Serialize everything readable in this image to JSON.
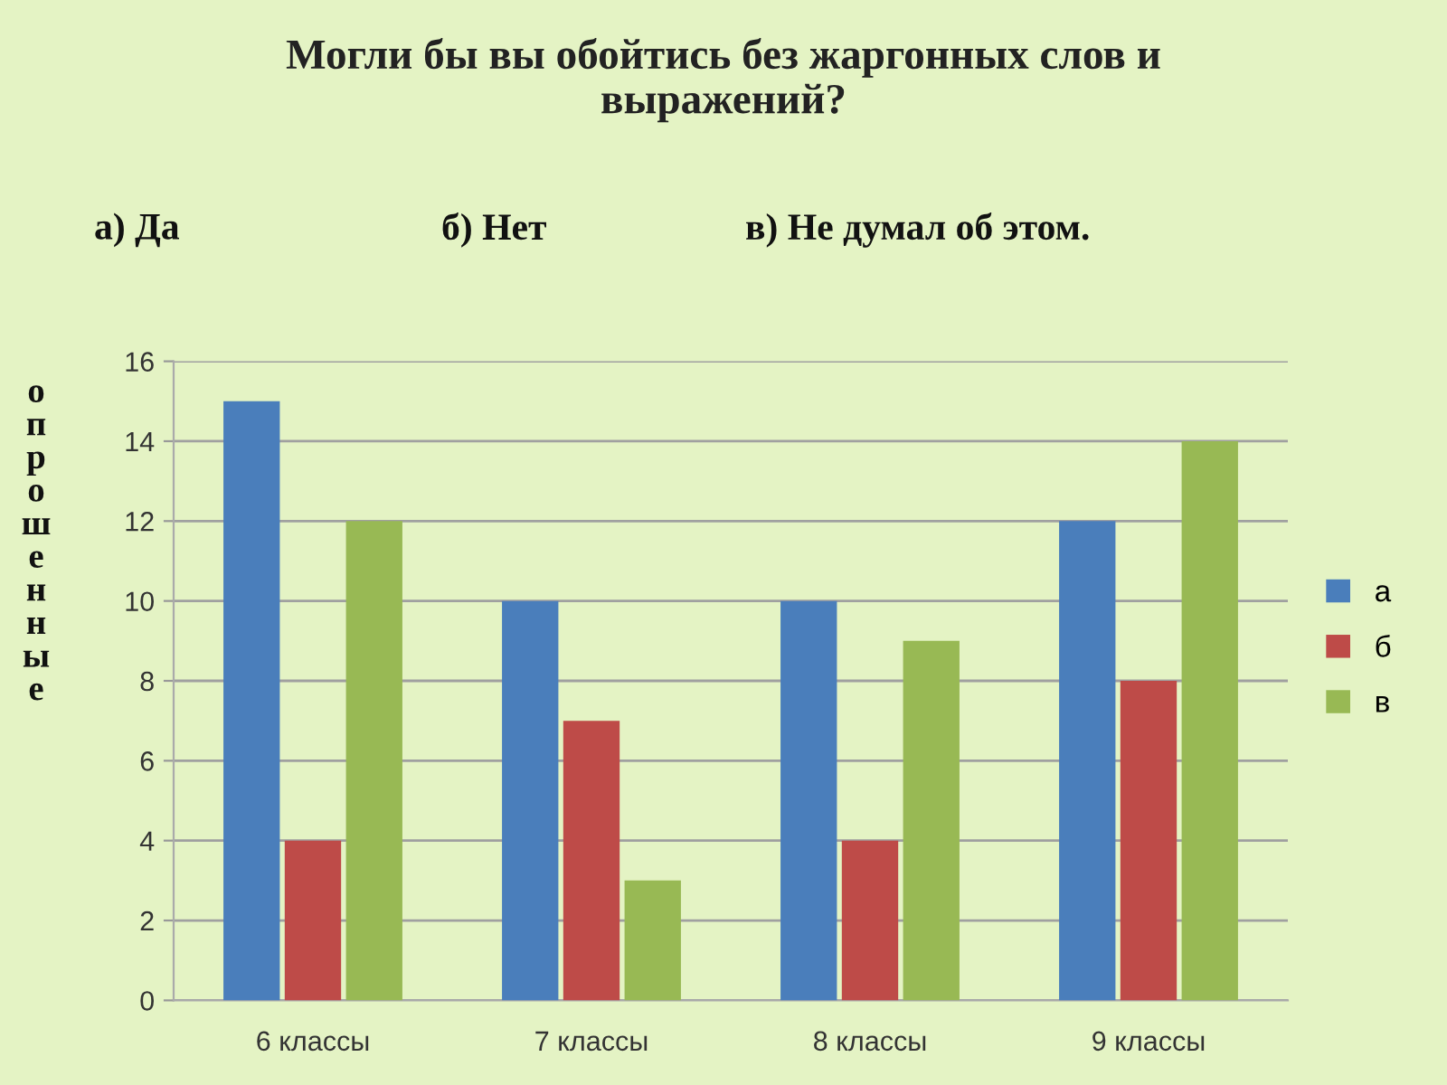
{
  "chart_data": {
    "type": "bar",
    "title": "Могли бы вы обойтись без жаргонных слов и выражений?",
    "annotations": [
      "а) Да",
      "б) Нет",
      "в) Не думал об этом."
    ],
    "ylabel": "опрошенные",
    "categories": [
      "6 классы",
      "7 классы",
      "8 классы",
      "9 классы"
    ],
    "series": [
      {
        "name": "а",
        "color": "#4a7ebb",
        "values": [
          15,
          10,
          10,
          12
        ]
      },
      {
        "name": "б",
        "color": "#be4b48",
        "values": [
          4,
          7,
          4,
          8
        ]
      },
      {
        "name": "в",
        "color": "#98b954",
        "values": [
          12,
          3,
          9,
          14
        ]
      }
    ],
    "ylim": [
      0,
      16
    ],
    "yticks": [
      0,
      2,
      4,
      6,
      8,
      10,
      12,
      14,
      16
    ],
    "grid": "y",
    "legend": "right"
  }
}
